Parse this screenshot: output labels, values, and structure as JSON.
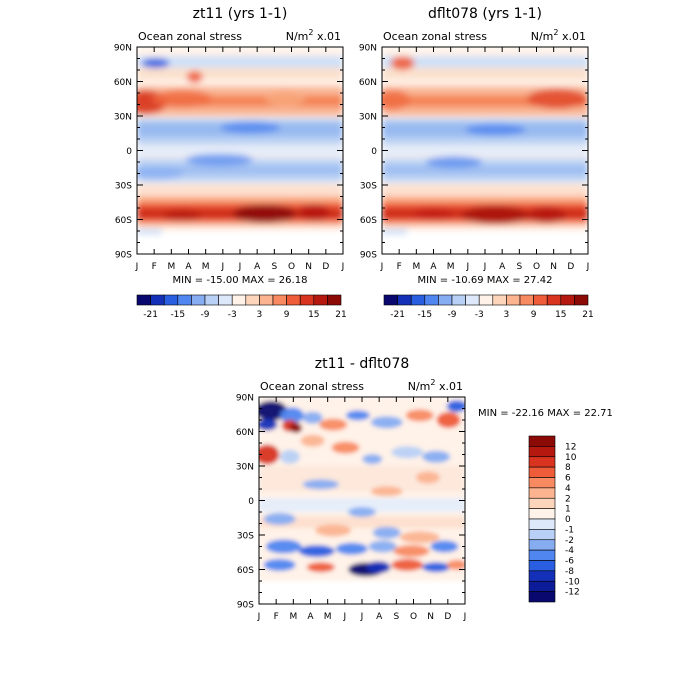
{
  "chart_data": [
    {
      "type": "heatmap",
      "title": "zt11 (yrs 1-1)",
      "left_label": "Ocean zonal stress",
      "right_label": "N/m",
      "unit_sup": "2",
      "unit_scale": "x.01",
      "x_ticks": [
        "J",
        "F",
        "M",
        "A",
        "M",
        "J",
        "J",
        "A",
        "S",
        "O",
        "N",
        "D",
        "J"
      ],
      "y_ticks": [
        "90N",
        "60N",
        "30N",
        "0",
        "30S",
        "60S",
        "90S"
      ],
      "stats": "MIN = -15.00 MAX =  26.18",
      "colorbar": {
        "orientation": "horizontal",
        "labels": [
          "-21",
          "-15",
          "-9",
          "-3",
          "3",
          "9",
          "15",
          "21"
        ],
        "colors": [
          "#08086e",
          "#1530b8",
          "#2a5ee0",
          "#4f86f0",
          "#86acf2",
          "#b8d0f5",
          "#dde9fa",
          "#fff2e8",
          "#fdd5bb",
          "#fbb390",
          "#f88a62",
          "#ee5c3a",
          "#d8341f",
          "#b5180f",
          "#8c0a05"
        ]
      }
    },
    {
      "type": "heatmap",
      "title": "dflt078 (yrs 1-1)",
      "left_label": "Ocean zonal stress",
      "right_label": "N/m",
      "unit_sup": "2",
      "unit_scale": "x.01",
      "x_ticks": [
        "J",
        "F",
        "M",
        "A",
        "M",
        "J",
        "J",
        "A",
        "S",
        "O",
        "N",
        "D",
        "J"
      ],
      "y_ticks": [
        "90N",
        "60N",
        "30N",
        "0",
        "30S",
        "60S",
        "90S"
      ],
      "stats": "MIN = -10.69 MAX =  27.42",
      "colorbar": {
        "orientation": "horizontal",
        "labels": [
          "-21",
          "-15",
          "-9",
          "-3",
          "3",
          "9",
          "15",
          "21"
        ],
        "colors": [
          "#08086e",
          "#1530b8",
          "#2a5ee0",
          "#4f86f0",
          "#86acf2",
          "#b8d0f5",
          "#dde9fa",
          "#fff2e8",
          "#fdd5bb",
          "#fbb390",
          "#f88a62",
          "#ee5c3a",
          "#d8341f",
          "#b5180f",
          "#8c0a05"
        ]
      }
    },
    {
      "type": "heatmap",
      "title": "zt11 - dflt078",
      "left_label": "Ocean zonal stress",
      "right_label": "N/m",
      "unit_sup": "2",
      "unit_scale": "x.01",
      "x_ticks": [
        "J",
        "F",
        "M",
        "A",
        "M",
        "J",
        "J",
        "A",
        "S",
        "O",
        "N",
        "D",
        "J"
      ],
      "y_ticks": [
        "90N",
        "60N",
        "30N",
        "0",
        "30S",
        "60S",
        "90S"
      ],
      "stats": "MIN = -22.16 MAX =  22.71",
      "colorbar": {
        "orientation": "vertical",
        "labels": [
          "12",
          "10",
          "8",
          "6",
          "4",
          "2",
          "1",
          "0",
          "-1",
          "-2",
          "-4",
          "-6",
          "-8",
          "-10",
          "-12"
        ],
        "colors": [
          "#8c0a05",
          "#b5180f",
          "#d8341f",
          "#ee5c3a",
          "#f88a62",
          "#fbb390",
          "#fdd5bb",
          "#fff2e8",
          "#dde9fa",
          "#b8d0f5",
          "#86acf2",
          "#4f86f0",
          "#2a5ee0",
          "#1530b8",
          "#0c1c98",
          "#08086e"
        ]
      }
    }
  ]
}
